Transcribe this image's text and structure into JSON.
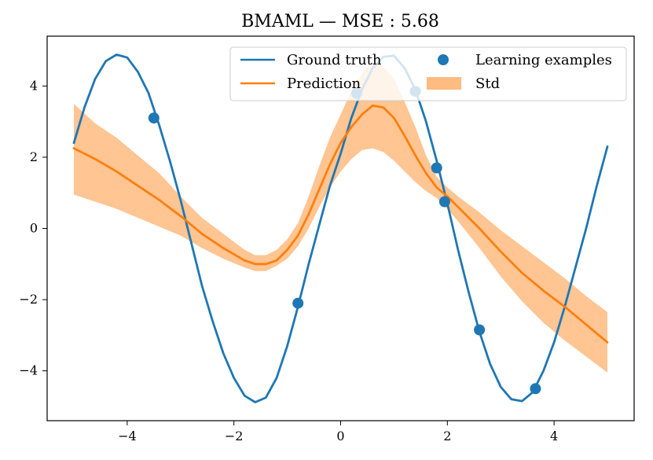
{
  "chart_data": {
    "type": "line",
    "title": "BMAML — MSE : 5.68",
    "xlabel": "",
    "ylabel": "",
    "xlim": [
      -5.5,
      5.5
    ],
    "ylim": [
      -5.4,
      5.4
    ],
    "xticks": [
      -4,
      -2,
      0,
      2,
      4
    ],
    "xtick_labels": [
      "−4",
      "−2",
      "0",
      "2",
      "4"
    ],
    "yticks": [
      -4,
      -2,
      0,
      2,
      4
    ],
    "ytick_labels": [
      "−4",
      "−2",
      "0",
      "2",
      "4"
    ],
    "grid": false,
    "legend_position": "top-right",
    "colors": {
      "ground_truth": "#1f77b4",
      "prediction": "#ff7f0e",
      "std_fill": "#ffbb80",
      "points": "#1f77b4"
    },
    "legend": {
      "ground_truth": "Ground truth",
      "prediction": "Prediction",
      "learning_examples": "Learning examples",
      "std": "Std"
    },
    "ground_truth": {
      "name": "Ground truth",
      "x": [
        -5.0,
        -4.8,
        -4.6,
        -4.4,
        -4.2,
        -4.0,
        -3.8,
        -3.6,
        -3.4,
        -3.2,
        -3.0,
        -2.8,
        -2.6,
        -2.4,
        -2.2,
        -2.0,
        -1.8,
        -1.6,
        -1.4,
        -1.2,
        -1.0,
        -0.8,
        -0.6,
        -0.4,
        -0.2,
        0.0,
        0.2,
        0.4,
        0.6,
        0.8,
        1.0,
        1.2,
        1.4,
        1.6,
        1.8,
        2.0,
        2.2,
        2.4,
        2.6,
        2.8,
        3.0,
        3.2,
        3.4,
        3.6,
        3.8,
        4.0,
        4.2,
        4.4,
        4.6,
        4.8,
        5.0
      ],
      "y": [
        2.4,
        3.4,
        4.2,
        4.7,
        4.88,
        4.8,
        4.4,
        3.8,
        2.9,
        1.9,
        0.8,
        -0.4,
        -1.6,
        -2.6,
        -3.5,
        -4.2,
        -4.7,
        -4.88,
        -4.75,
        -4.2,
        -3.3,
        -2.2,
        -1.0,
        0.1,
        1.2,
        2.1,
        3.1,
        3.9,
        4.5,
        4.82,
        4.85,
        4.5,
        3.9,
        3.0,
        1.9,
        0.7,
        -0.6,
        -1.8,
        -2.9,
        -3.8,
        -4.45,
        -4.8,
        -4.85,
        -4.6,
        -4.0,
        -3.2,
        -2.2,
        -1.1,
        0.0,
        1.2,
        2.3
      ]
    },
    "prediction": {
      "name": "Prediction",
      "x": [
        -5.0,
        -4.6,
        -4.2,
        -3.8,
        -3.4,
        -3.0,
        -2.6,
        -2.2,
        -1.8,
        -1.6,
        -1.4,
        -1.2,
        -1.0,
        -0.8,
        -0.6,
        -0.4,
        -0.2,
        0.0,
        0.2,
        0.4,
        0.6,
        0.8,
        1.0,
        1.2,
        1.4,
        1.6,
        1.8,
        2.0,
        2.2,
        2.6,
        3.0,
        3.4,
        3.8,
        4.2,
        4.6,
        5.0
      ],
      "y": [
        2.25,
        1.95,
        1.6,
        1.2,
        0.8,
        0.35,
        -0.15,
        -0.55,
        -0.9,
        -1.0,
        -1.0,
        -0.9,
        -0.6,
        -0.2,
        0.4,
        1.1,
        1.8,
        2.4,
        2.85,
        3.2,
        3.45,
        3.4,
        3.1,
        2.6,
        2.05,
        1.55,
        1.15,
        0.9,
        0.6,
        0.0,
        -0.65,
        -1.25,
        -1.75,
        -2.2,
        -2.7,
        -3.2
      ]
    },
    "std_band": {
      "name": "Std",
      "x": [
        -5.0,
        -4.6,
        -4.2,
        -3.8,
        -3.4,
        -3.0,
        -2.6,
        -2.2,
        -1.8,
        -1.6,
        -1.4,
        -1.2,
        -1.0,
        -0.8,
        -0.6,
        -0.4,
        -0.2,
        0.0,
        0.2,
        0.4,
        0.6,
        0.8,
        1.0,
        1.2,
        1.4,
        1.6,
        1.8,
        2.0,
        2.2,
        2.6,
        3.0,
        3.4,
        3.8,
        4.2,
        4.6,
        5.0
      ],
      "lower": [
        0.95,
        0.75,
        0.55,
        0.3,
        0.05,
        -0.2,
        -0.55,
        -0.85,
        -1.1,
        -1.2,
        -1.2,
        -1.05,
        -0.85,
        -0.5,
        0.0,
        0.6,
        1.15,
        1.6,
        1.95,
        2.2,
        2.25,
        2.15,
        1.9,
        1.6,
        1.3,
        1.05,
        0.85,
        0.55,
        0.2,
        -0.55,
        -1.35,
        -2.05,
        -2.65,
        -3.15,
        -3.6,
        -4.05
      ],
      "upper": [
        3.5,
        2.95,
        2.55,
        2.05,
        1.55,
        0.9,
        0.3,
        -0.15,
        -0.6,
        -0.75,
        -0.75,
        -0.6,
        -0.3,
        0.15,
        0.9,
        1.75,
        2.55,
        3.2,
        3.85,
        4.35,
        4.65,
        4.55,
        4.2,
        3.55,
        2.85,
        2.05,
        1.45,
        1.15,
        0.9,
        0.45,
        -0.05,
        -0.5,
        -0.95,
        -1.4,
        -1.9,
        -2.35
      ]
    },
    "learning_examples": {
      "name": "Learning examples",
      "x": [
        -3.5,
        -0.8,
        0.3,
        1.4,
        1.8,
        1.95,
        2.6,
        3.65
      ],
      "y": [
        3.1,
        -2.1,
        3.8,
        3.85,
        1.7,
        0.75,
        -2.85,
        -4.5
      ]
    }
  }
}
